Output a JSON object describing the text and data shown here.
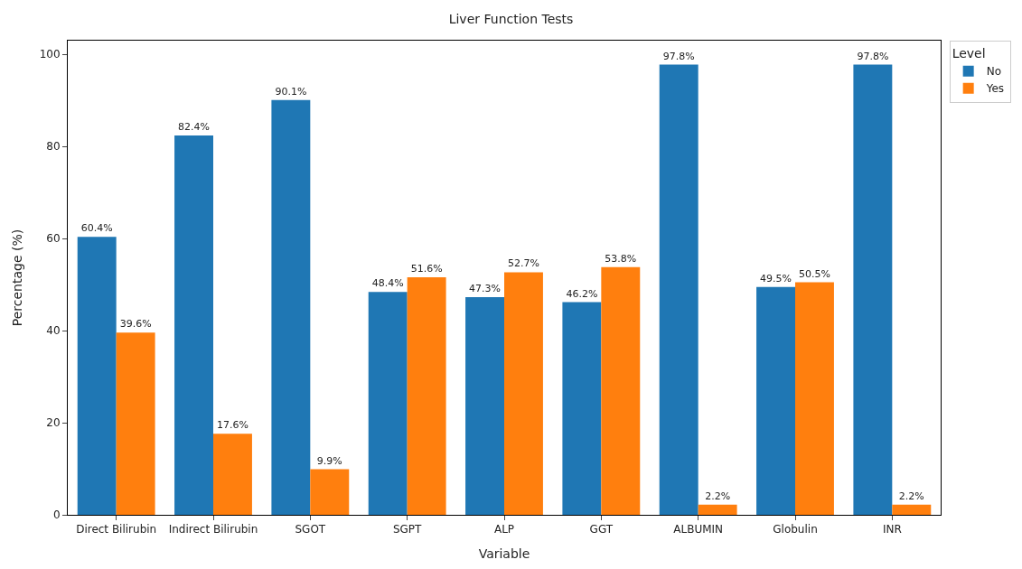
{
  "chart_data": {
    "type": "bar",
    "title": "Liver Function Tests",
    "xlabel": "Variable",
    "ylabel": "Percentage (%)",
    "legend_title": "Level",
    "legend": "top right",
    "grid": false,
    "categories": [
      "Direct Bilirubin",
      "Indirect Bilirubin",
      "SGOT",
      "SGPT",
      "ALP",
      "GGT",
      "ALBUMIN",
      "Globulin",
      "INR"
    ],
    "series": [
      {
        "name": "No",
        "color": "#1f77b4",
        "values": [
          60.4,
          82.4,
          90.1,
          48.4,
          47.3,
          46.2,
          97.8,
          49.5,
          97.8
        ],
        "value_labels": [
          "60.4%",
          "82.4%",
          "90.1%",
          "48.4%",
          "47.3%",
          "46.2%",
          "97.8%",
          "49.5%",
          "97.8%"
        ]
      },
      {
        "name": "Yes",
        "color": "#ff7f0e",
        "values": [
          39.6,
          17.6,
          9.9,
          51.6,
          52.7,
          53.8,
          2.2,
          50.5,
          2.2
        ],
        "value_labels": [
          "39.6%",
          "17.6%",
          "9.9%",
          "51.6%",
          "52.7%",
          "53.8%",
          "2.2%",
          "50.5%",
          "2.2%"
        ]
      }
    ],
    "ylim": [
      0,
      103
    ],
    "yticks": [
      0,
      20,
      40,
      60,
      80,
      100
    ]
  }
}
